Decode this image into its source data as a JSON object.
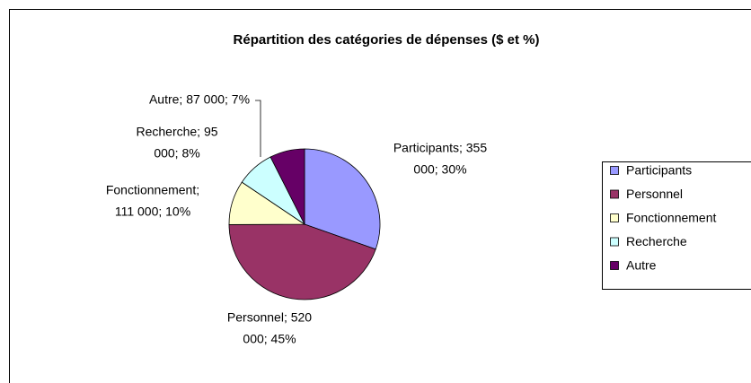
{
  "chart_data": {
    "type": "pie",
    "title": "Répartition des catégories de dépenses ($ et %)",
    "categories": [
      "Participants",
      "Personnel",
      "Fonctionnement",
      "Recherche",
      "Autre"
    ],
    "values": [
      355000,
      520000,
      111000,
      95000,
      87000
    ],
    "value_labels": [
      [
        "Participants; 355",
        "000; 30%"
      ],
      [
        "Personnel; 520",
        "000; 45%"
      ],
      [
        "Fonctionnement;",
        "111 000; 10%"
      ],
      [
        "Recherche; 95",
        "000; 8%"
      ],
      [
        "Autre; 87 000; 7%"
      ]
    ],
    "colors": [
      "#9999FF",
      "#993366",
      "#FFFFCC",
      "#CCFFFF",
      "#660066"
    ],
    "legend": "right"
  }
}
